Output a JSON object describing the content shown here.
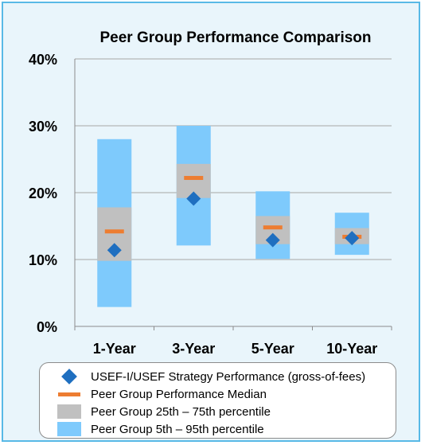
{
  "chart_data": {
    "type": "box-range",
    "title": "Peer Group Performance Comparison",
    "categories": [
      "1-Year",
      "3-Year",
      "5-Year",
      "10-Year"
    ],
    "y_ticks": [
      "0%",
      "10%",
      "20%",
      "30%",
      "40%"
    ],
    "ylim": [
      0,
      40
    ],
    "grid": true,
    "series": [
      {
        "name": "USEF-I/USEF Strategy Performance (gross-of-fees)",
        "values": [
          11.4,
          19.1,
          12.9,
          13.2
        ]
      },
      {
        "name": "Peer Group Performance Median",
        "values": [
          14.2,
          22.2,
          14.8,
          13.4
        ]
      },
      {
        "name": "Peer Group 25th – 75th percentile",
        "low": [
          9.8,
          19.2,
          12.3,
          12.3
        ],
        "high": [
          17.8,
          24.3,
          16.5,
          14.7
        ]
      },
      {
        "name": "Peer Group 5th – 95th percentile",
        "low": [
          2.9,
          12.1,
          10.1,
          10.7
        ],
        "high": [
          28.0,
          30.0,
          20.2,
          17.0
        ]
      }
    ],
    "colors": {
      "strategy": "#1f6fc0",
      "median": "#ed7d31",
      "iqr": "#c0c0c0",
      "range": "#7ecafc",
      "grid": "#a6a6a6",
      "background": "#e9f5fb",
      "border": "#58b9e6"
    },
    "legend_position": "bottom"
  }
}
